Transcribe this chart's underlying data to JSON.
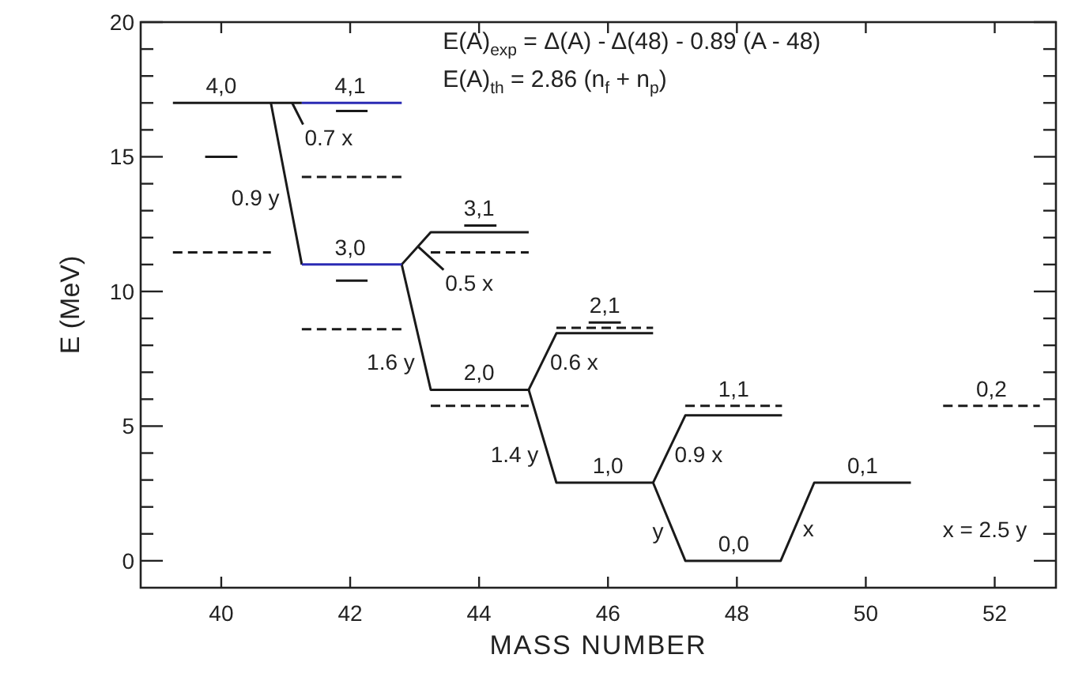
{
  "chart_data": {
    "type": "line",
    "xlabel": "MASS NUMBER",
    "ylabel": "E (MeV)",
    "xlim": [
      38.75,
      52.95
    ],
    "ylim": [
      -1,
      20
    ],
    "xticks": [
      40,
      42,
      44,
      46,
      48,
      50,
      52
    ],
    "yticks": [
      0,
      {
        "value": 1,
        "label": null
      },
      {
        "value": 2,
        "label": null
      },
      {
        "value": 3,
        "label": null
      },
      {
        "value": 4,
        "label": null
      },
      5,
      {
        "value": 6,
        "label": null
      },
      {
        "value": 7,
        "label": null
      },
      {
        "value": 8,
        "label": null
      },
      {
        "value": 9,
        "label": null
      },
      10,
      {
        "value": 11,
        "label": null
      },
      {
        "value": 12,
        "label": null
      },
      {
        "value": 13,
        "label": null
      },
      {
        "value": 14,
        "label": null
      },
      15,
      {
        "value": 16,
        "label": null
      },
      {
        "value": 17,
        "label": null
      },
      {
        "value": 18,
        "label": null
      },
      {
        "value": 19,
        "label": null
      },
      20
    ],
    "series": [
      {
        "color": "#1a1a1a",
        "line_style": "solid",
        "x": [
          39.25,
          41.25,
          null,
          42.8,
          43.25,
          44.77,
          null,
          46.7,
          47.2,
          48.7
        ],
        "values": [
          17.0,
          17.0,
          null,
          11.0,
          12.2,
          12.2,
          null,
          2.9,
          5.4,
          5.4
        ]
      },
      {
        "color": "#1a1a1a",
        "line_style": "solid",
        "x": [
          40.77,
          41.25,
          null,
          42.8,
          43.25,
          44.77,
          45.2,
          46.7,
          47.2,
          48.68,
          49.2,
          50.7
        ],
        "values": [
          17.0,
          11.0,
          null,
          11.0,
          6.35,
          6.35,
          2.9,
          2.9,
          0,
          0,
          2.9,
          2.9
        ]
      },
      {
        "color": "#1a1a1a",
        "line_style": "solid",
        "x": [
          41.1,
          41.27,
          null,
          43.06,
          43.45,
          null,
          44.77,
          45.2,
          46.7
        ],
        "values": [
          17.0,
          16.2,
          null,
          11.65,
          10.8,
          null,
          6.35,
          8.45,
          8.45
        ]
      },
      {
        "color": "#2b2bb4",
        "line_style": "solid",
        "x": [
          41.25,
          42.8
        ],
        "values": [
          17.0,
          17.0
        ]
      },
      {
        "color": "#2b2bb4",
        "line_style": "solid",
        "x": [
          41.25,
          42.8
        ],
        "values": [
          11.0,
          11.0
        ]
      },
      {
        "color": "#1a1a1a",
        "line_style": "dashed",
        "x": [
          39.25,
          40.77,
          null,
          41.25,
          42.8,
          null,
          43.25,
          44.77,
          null,
          45.2,
          46.7,
          null,
          47.2,
          48.7,
          null,
          51.2,
          52.7
        ],
        "values": [
          11.45,
          11.45,
          null,
          14.25,
          14.25,
          null,
          11.45,
          11.45,
          null,
          8.65,
          8.65,
          null,
          5.75,
          5.75,
          null,
          5.75,
          5.75
        ]
      },
      {
        "color": "#1a1a1a",
        "line_style": "dashed",
        "x": [
          41.25,
          42.8,
          null,
          43.25,
          44.77
        ],
        "values": [
          8.6,
          8.6,
          null,
          5.75,
          5.75
        ]
      },
      {
        "color": "#1a1a1a",
        "line_style": "solid",
        "x": [
          39.75,
          40.25,
          null,
          41.78,
          42.27,
          null,
          43.77,
          44.27,
          null,
          45.7,
          46.2
        ],
        "values": [
          15.0,
          15.0,
          null,
          16.7,
          16.7,
          null,
          12.45,
          12.45,
          null,
          8.85,
          8.85
        ]
      },
      {
        "color": "#1a1a1a",
        "line_style": "solid",
        "x": [
          41.78,
          42.27
        ],
        "values": [
          10.4,
          10.4
        ]
      }
    ],
    "annotations": [
      "E(A)$_{exp}$ = Δ(A) - Δ(48) - 0.89 (A - 48)",
      "E(A)$_{th}$ = 2.86 (n$_{f}$ + n$_{p}$)",
      "x = 2.5 y",
      {
        "text": "4,0",
        "x": 40.0,
        "y": 17.0
      },
      {
        "text": "4,1",
        "x": 42.0,
        "y": 17.0
      },
      {
        "text": "0.7 x",
        "x": 41.27,
        "y": 16.2
      },
      {
        "text": "0.9 y",
        "x": 41.05,
        "y": 13.5
      },
      {
        "text": "3,0",
        "x": 42.0,
        "y": 11.0
      },
      {
        "text": "3,1",
        "x": 44.0,
        "y": 12.45
      },
      {
        "text": "0.5 x",
        "x": 43.45,
        "y": 10.8
      },
      {
        "text": "1.6 y",
        "x": 43.15,
        "y": 7.4
      },
      {
        "text": "2,0",
        "x": 44.0,
        "y": 6.35
      },
      {
        "text": "2,1",
        "x": 45.95,
        "y": 8.85
      },
      {
        "text": "0.6 x",
        "x": 44.98,
        "y": 7.4
      },
      {
        "text": "1.4 y",
        "x": 45.07,
        "y": 3.95
      },
      {
        "text": "1,0",
        "x": 46.0,
        "y": 2.9
      },
      {
        "text": "0.9 x",
        "x": 46.91,
        "y": 3.95
      },
      {
        "text": "1,1",
        "x": 47.95,
        "y": 5.75
      },
      {
        "text": "y",
        "x": 47.01,
        "y": 1.1
      },
      {
        "text": "0,0",
        "x": 47.95,
        "y": 0
      },
      {
        "text": "x",
        "x": 48.9,
        "y": 1.2
      },
      {
        "text": "0,1",
        "x": 49.95,
        "y": 2.9
      },
      {
        "text": "0,2",
        "x": 51.95,
        "y": 5.75
      }
    ]
  }
}
